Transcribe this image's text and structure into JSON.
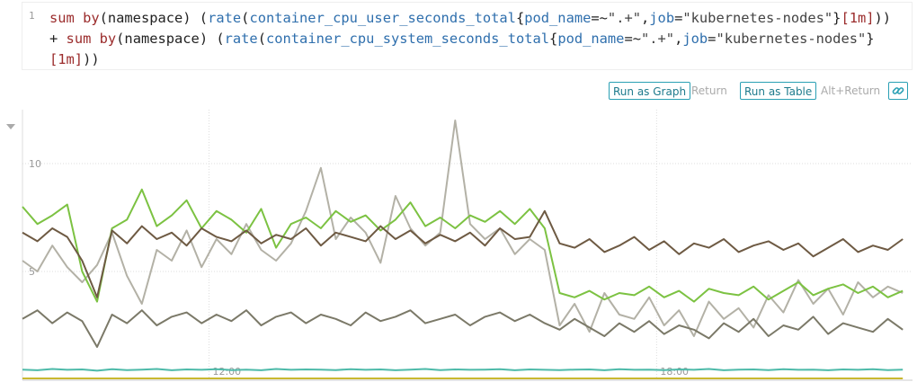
{
  "query": {
    "line_number": "1",
    "lines": [
      [
        {
          "text": "sum by",
          "color": "#9b2c2c"
        },
        {
          "text": "(namespace) (",
          "color": "#222222"
        },
        {
          "text": "rate",
          "color": "#2f6fad"
        },
        {
          "text": "(",
          "color": "#222222"
        },
        {
          "text": "container_cpu_user_seconds_total",
          "color": "#2f6fad"
        },
        {
          "text": "{",
          "color": "#222222"
        },
        {
          "text": "pod_name",
          "color": "#2f6fad"
        },
        {
          "text": "=~",
          "color": "#222222"
        },
        {
          "text": "\".+\"",
          "color": "#444444"
        },
        {
          "text": ",",
          "color": "#222222"
        },
        {
          "text": "job",
          "color": "#2f6fad"
        },
        {
          "text": "=",
          "color": "#222222"
        },
        {
          "text": "\"kubernetes-nodes\"",
          "color": "#444444"
        },
        {
          "text": "}",
          "color": "#222222"
        },
        {
          "text": "[1m]",
          "color": "#9b2c2c"
        },
        {
          "text": "))",
          "color": "#222222"
        }
      ],
      [
        {
          "text": "+ ",
          "color": "#222222"
        },
        {
          "text": "sum by",
          "color": "#9b2c2c"
        },
        {
          "text": "(namespace) (",
          "color": "#222222"
        },
        {
          "text": "rate",
          "color": "#2f6fad"
        },
        {
          "text": "(",
          "color": "#222222"
        },
        {
          "text": "container_cpu_system_seconds_total",
          "color": "#2f6fad"
        },
        {
          "text": "{",
          "color": "#222222"
        },
        {
          "text": "pod_name",
          "color": "#2f6fad"
        },
        {
          "text": "=~",
          "color": "#222222"
        },
        {
          "text": "\".+\"",
          "color": "#444444"
        },
        {
          "text": ",",
          "color": "#222222"
        },
        {
          "text": "job",
          "color": "#2f6fad"
        },
        {
          "text": "=",
          "color": "#222222"
        },
        {
          "text": "\"kubernetes-nodes\"",
          "color": "#444444"
        },
        {
          "text": "}",
          "color": "#222222"
        }
      ],
      [
        {
          "text": "[1m]",
          "color": "#9b2c2c"
        },
        {
          "text": "))",
          "color": "#222222"
        }
      ]
    ]
  },
  "buttons": [
    {
      "label": "Run as Graph",
      "hint": "Return"
    },
    {
      "label": "Run as Table",
      "hint": "Alt+Return"
    }
  ],
  "chart_data": {
    "type": "line",
    "x": [
      9.5,
      9.7,
      9.9,
      10.1,
      10.3,
      10.5,
      10.7,
      10.9,
      11.1,
      11.3,
      11.5,
      11.7,
      11.9,
      12.1,
      12.3,
      12.5,
      12.7,
      12.9,
      13.1,
      13.3,
      13.5,
      13.7,
      13.9,
      14.1,
      14.3,
      14.5,
      14.7,
      14.9,
      15.1,
      15.3,
      15.5,
      15.7,
      15.9,
      16.1,
      16.3,
      16.5,
      16.7,
      16.9,
      17.1,
      17.3,
      17.5,
      17.7,
      17.9,
      18.1,
      18.3,
      18.5,
      18.7,
      18.9,
      19.1,
      19.3,
      19.5,
      19.7,
      19.9,
      20.1,
      20.3,
      20.5,
      20.7,
      20.9,
      21.1,
      21.3
    ],
    "xlim": [
      9.5,
      21.43
    ],
    "xticks": [
      {
        "value": 12,
        "label": "12:00"
      },
      {
        "value": 18,
        "label": "18:00"
      }
    ],
    "ylim": [
      0,
      12.5
    ],
    "yticks": [
      5,
      10
    ],
    "grid": true,
    "series": [
      {
        "color": "#b3b1a6",
        "values": [
          5.5,
          5.0,
          6.2,
          5.2,
          4.5,
          5.3,
          6.8,
          4.8,
          3.5,
          6.0,
          5.5,
          6.9,
          5.2,
          6.5,
          5.8,
          7.2,
          6.0,
          5.5,
          6.3,
          7.8,
          9.8,
          6.5,
          7.5,
          6.8,
          5.4,
          8.5,
          7.0,
          6.2,
          6.8,
          12.0,
          7.2,
          6.5,
          7.0,
          5.8,
          6.5,
          6.0,
          2.5,
          3.5,
          2.2,
          4.0,
          3.0,
          2.8,
          3.8,
          2.5,
          3.2,
          2.0,
          3.6,
          2.8,
          3.3,
          2.4,
          3.9,
          3.1,
          4.6,
          3.5,
          4.2,
          3.0,
          4.5,
          3.8,
          4.3,
          4.0
        ]
      },
      {
        "color": "#7cc242",
        "values": [
          8.0,
          7.2,
          7.6,
          8.1,
          5.0,
          3.6,
          7.0,
          7.4,
          8.8,
          7.1,
          7.6,
          8.3,
          7.0,
          7.8,
          7.4,
          6.8,
          7.9,
          6.1,
          7.2,
          7.5,
          7.0,
          7.8,
          7.3,
          7.6,
          6.9,
          7.4,
          8.2,
          7.1,
          7.5,
          7.0,
          7.6,
          7.3,
          7.8,
          7.2,
          7.9,
          7.0,
          4.0,
          3.8,
          4.1,
          3.7,
          4.0,
          3.9,
          4.3,
          3.8,
          4.1,
          3.6,
          4.2,
          4.0,
          3.9,
          4.3,
          3.7,
          4.1,
          4.5,
          3.9,
          4.2,
          4.4,
          4.0,
          4.3,
          3.8,
          4.1
        ]
      },
      {
        "color": "#6e5a43",
        "values": [
          6.8,
          6.4,
          7.0,
          6.6,
          5.5,
          3.8,
          6.9,
          6.3,
          7.1,
          6.5,
          6.8,
          6.2,
          7.0,
          6.6,
          6.4,
          6.9,
          6.3,
          6.7,
          6.5,
          7.0,
          6.2,
          6.8,
          6.6,
          6.4,
          7.1,
          6.5,
          6.9,
          6.3,
          6.7,
          6.4,
          6.8,
          6.2,
          7.0,
          6.5,
          6.6,
          7.8,
          6.3,
          6.1,
          6.5,
          5.9,
          6.2,
          6.6,
          6.0,
          6.4,
          5.8,
          6.3,
          6.1,
          6.5,
          5.9,
          6.2,
          6.4,
          6.0,
          6.3,
          5.7,
          6.1,
          6.5,
          5.9,
          6.2,
          6.0,
          6.5
        ]
      },
      {
        "color": "#7b7968",
        "values": [
          2.8,
          3.2,
          2.6,
          3.1,
          2.7,
          1.5,
          3.0,
          2.6,
          3.2,
          2.5,
          2.9,
          3.1,
          2.6,
          3.0,
          2.7,
          3.2,
          2.5,
          2.9,
          3.1,
          2.6,
          3.0,
          2.8,
          2.5,
          3.1,
          2.7,
          2.9,
          3.2,
          2.6,
          2.8,
          3.0,
          2.5,
          2.9,
          3.1,
          2.7,
          3.0,
          2.6,
          2.3,
          2.8,
          2.4,
          2.0,
          2.6,
          2.2,
          2.7,
          2.1,
          2.5,
          2.3,
          1.9,
          2.6,
          2.2,
          2.8,
          2.0,
          2.5,
          2.3,
          2.9,
          2.1,
          2.6,
          2.4,
          2.2,
          2.8,
          2.3
        ]
      },
      {
        "color": "#4dbaa9",
        "values": [
          0.45,
          0.42,
          0.48,
          0.44,
          0.46,
          0.4,
          0.47,
          0.43,
          0.45,
          0.48,
          0.42,
          0.46,
          0.44,
          0.47,
          0.43,
          0.45,
          0.42,
          0.48,
          0.44,
          0.46,
          0.45,
          0.43,
          0.47,
          0.44,
          0.46,
          0.42,
          0.45,
          0.48,
          0.43,
          0.46,
          0.44,
          0.45,
          0.47,
          0.42,
          0.46,
          0.44,
          0.43,
          0.45,
          0.46,
          0.42,
          0.47,
          0.44,
          0.45,
          0.43,
          0.46,
          0.44,
          0.48,
          0.42,
          0.45,
          0.46,
          0.43,
          0.47,
          0.44,
          0.45,
          0.42,
          0.46,
          0.44,
          0.47,
          0.43,
          0.45
        ]
      },
      {
        "color": "#c9b830",
        "values": [
          0.04,
          0.04,
          0.04,
          0.04,
          0.04,
          0.04,
          0.04,
          0.04,
          0.04,
          0.04,
          0.04,
          0.04,
          0.04,
          0.04,
          0.04,
          0.04,
          0.04,
          0.04,
          0.04,
          0.04,
          0.04,
          0.04,
          0.04,
          0.04,
          0.04,
          0.04,
          0.04,
          0.04,
          0.04,
          0.04,
          0.04,
          0.04,
          0.04,
          0.04,
          0.04,
          0.04,
          0.04,
          0.04,
          0.04,
          0.04,
          0.04,
          0.04,
          0.04,
          0.04,
          0.04,
          0.04,
          0.04,
          0.04,
          0.04,
          0.04,
          0.04,
          0.04,
          0.04,
          0.04,
          0.04,
          0.04,
          0.04,
          0.04,
          0.04,
          0.04
        ]
      }
    ]
  }
}
